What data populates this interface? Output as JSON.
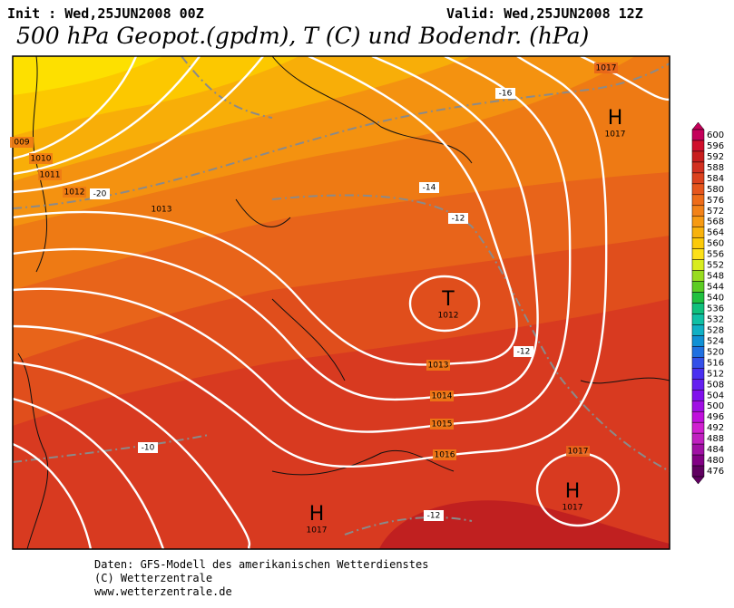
{
  "header": {
    "init": "Init : Wed,25JUN2008 00Z",
    "valid": "Valid: Wed,25JUN2008 12Z",
    "title": "500 hPa Geopot.(gpdm), T (C) und Bodendr. (hPa)"
  },
  "isobar_labels": [
    1017,
    1017,
    1016,
    1015,
    1014,
    1013,
    1013,
    1012,
    1011,
    1010,
    "009"
  ],
  "isotherm_labels": [
    -16,
    -14,
    -12,
    -20,
    -12,
    -10,
    -12
  ],
  "pressure_centers": [
    {
      "symbol": "H",
      "value": 1017
    },
    {
      "symbol": "T",
      "value": 1012
    },
    {
      "symbol": "H",
      "value": 1017
    },
    {
      "symbol": "H",
      "value": 1017
    }
  ],
  "colorbar": {
    "levels": [
      600,
      596,
      592,
      588,
      584,
      580,
      576,
      572,
      568,
      564,
      560,
      556,
      552,
      548,
      544,
      540,
      536,
      532,
      528,
      524,
      520,
      516,
      512,
      508,
      504,
      500,
      496,
      492,
      488,
      484,
      480,
      476
    ],
    "colors": [
      "#c4005a",
      "#d0102c",
      "#c81e1e",
      "#d23020",
      "#dc421e",
      "#e6561c",
      "#ee6c18",
      "#f28218",
      "#f69a12",
      "#f8b20c",
      "#fcca08",
      "#fce018",
      "#d8ec20",
      "#98dc20",
      "#5ccc24",
      "#20c040",
      "#10c07c",
      "#10c0a4",
      "#10b0c4",
      "#1090d4",
      "#2070e0",
      "#3450e8",
      "#4a30f0",
      "#6420f0",
      "#8010ec",
      "#a010e4",
      "#c010dc",
      "#d020d0",
      "#c020c0",
      "#a010a4",
      "#820084",
      "#600060"
    ]
  },
  "footer": [
    "Daten: GFS-Modell des amerikanischen Wetterdienstes",
    "(C) Wetterzentrale",
    "www.wetterzentrale.de"
  ]
}
